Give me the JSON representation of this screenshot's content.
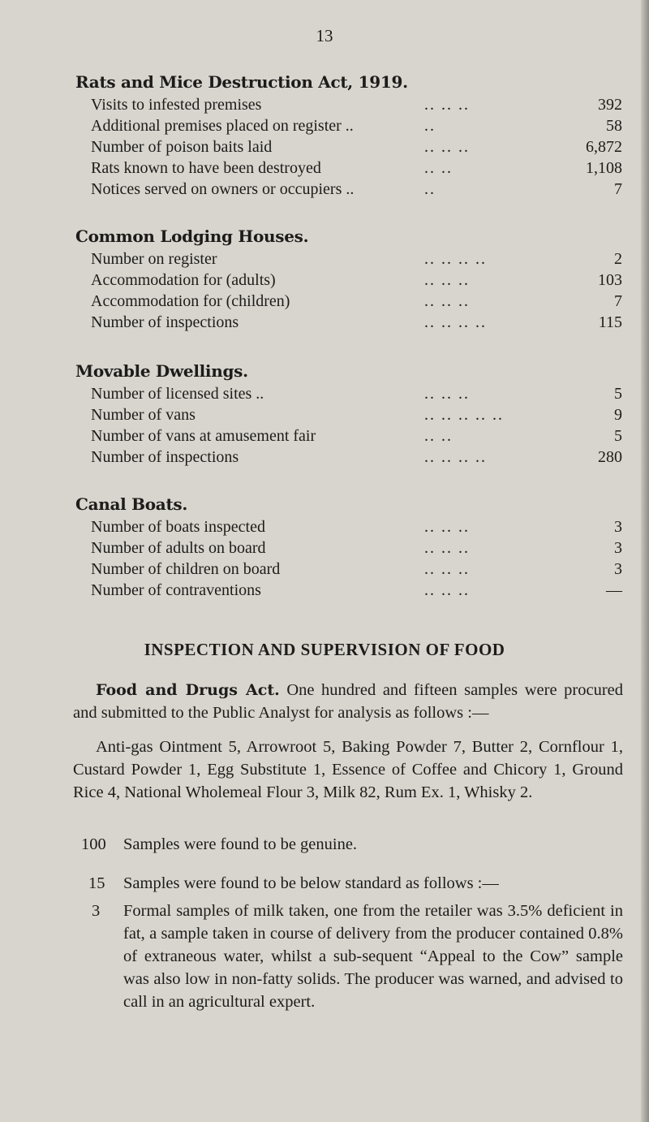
{
  "page_number": "13",
  "sections": [
    {
      "title": "Rats and Mice Destruction Act, 1919.",
      "rows": [
        {
          "label": "Visits to infested premises",
          "dots": ".. .. ..",
          "value": "392"
        },
        {
          "label": "Additional premises placed on register ..",
          "dots": "..",
          "value": "58"
        },
        {
          "label": "Number of poison baits laid",
          "dots": ".. .. ..",
          "value": "6,872"
        },
        {
          "label": "Rats known to have been destroyed",
          "dots": ".. ..",
          "value": "1,108"
        },
        {
          "label": "Notices served on owners or occupiers ..",
          "dots": "..",
          "value": "7"
        }
      ]
    },
    {
      "title": "Common Lodging Houses.",
      "rows": [
        {
          "label": "Number on register",
          "dots": ".. .. .. ..",
          "value": "2"
        },
        {
          "label": "Accommodation for (adults)",
          "dots": ".. .. ..",
          "value": "103"
        },
        {
          "label": "Accommodation for (children)",
          "dots": ".. .. ..",
          "value": "7"
        },
        {
          "label": "Number of inspections",
          "dots": ".. .. .. ..",
          "value": "115"
        }
      ]
    },
    {
      "title": "Movable Dwellings.",
      "rows": [
        {
          "label": "Number of licensed sites ..",
          "dots": ".. .. ..",
          "value": "5"
        },
        {
          "label": "Number of vans",
          "dots": ".. .. .. .. ..",
          "value": "9"
        },
        {
          "label": "Number of vans at amusement fair",
          "dots": ".. ..",
          "value": "5"
        },
        {
          "label": "Number of inspections",
          "dots": ".. .. .. ..",
          "value": "280"
        }
      ]
    },
    {
      "title": "Canal Boats.",
      "rows": [
        {
          "label": "Number of boats inspected",
          "dots": ".. .. ..",
          "value": "3"
        },
        {
          "label": "Number of adults on board",
          "dots": ".. .. ..",
          "value": "3"
        },
        {
          "label": "Number of children on board",
          "dots": ".. .. ..",
          "value": "3"
        },
        {
          "label": "Number of contraventions",
          "dots": ".. .. ..",
          "value": "—"
        }
      ]
    }
  ],
  "food": {
    "heading": "INSPECTION AND SUPERVISION OF FOOD",
    "act_title": "Food and Drugs Act.",
    "intro": "One hundred and fifteen samples were procured and submitted to the Public Analyst for analysis as follows :—",
    "samples_list": "Anti-gas Ointment 5, Arrowroot 5, Baking Powder 7, Butter 2, Cornflour 1, Custard Powder 1, Egg Substitute 1, Essence of Coffee and Chicory 1, Ground Rice 4, National Wholemeal Flour 3, Milk 82, Rum Ex. 1, Whisky 2.",
    "genuine_count": "100",
    "genuine_text": "Samples were found to be genuine.",
    "below_count": "15",
    "below_text": "Samples were found to be below standard as follows :—",
    "formal_count": "3",
    "formal_text": "Formal samples of milk taken, one from the retailer was 3.5% deficient in fat, a sample taken in course of delivery from the producer contained 0.8% of extraneous water, whilst a sub-sequent “Appeal to the Cow” sample was also low in non-fatty solids. The producer was warned, and advised to call in an agricultural expert."
  }
}
